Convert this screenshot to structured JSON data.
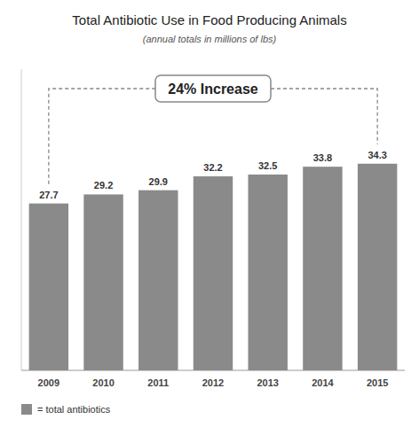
{
  "chart_data": {
    "type": "bar",
    "title": "Total Antibiotic Use in Food Producing Animals",
    "subtitle": "(annual totals in millions of lbs)",
    "categories": [
      "2009",
      "2010",
      "2011",
      "2012",
      "2013",
      "2014",
      "2015"
    ],
    "series": [
      {
        "name": "= total antibiotics",
        "color": "#8a8a8a",
        "values": [
          27.7,
          29.2,
          29.9,
          32.2,
          32.5,
          33.8,
          34.3
        ]
      }
    ],
    "ylim": [
      0,
      50
    ],
    "tick_labels": "x",
    "data_labels": true,
    "legend": "bottom",
    "annotation": "24% Increase"
  }
}
